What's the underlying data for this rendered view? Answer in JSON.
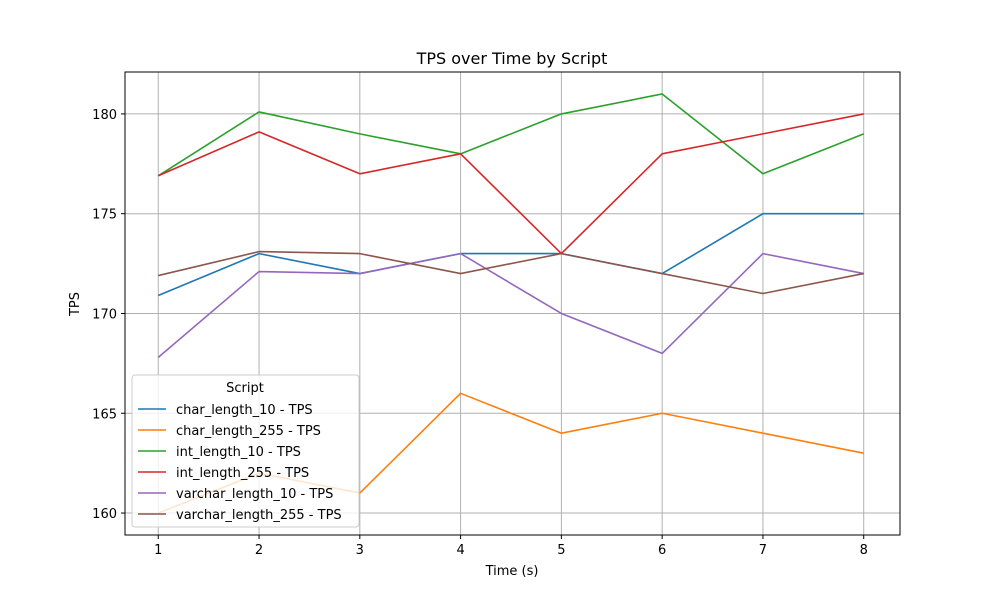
{
  "chart_data": {
    "type": "line",
    "title": "TPS over Time by Script",
    "xlabel": "Time (s)",
    "ylabel": "TPS",
    "x": [
      1,
      2,
      3,
      4,
      5,
      6,
      7,
      8
    ],
    "xlim": [
      0.67,
      8.36
    ],
    "ylim": [
      158.9,
      182.1
    ],
    "xticks": [
      1,
      2,
      3,
      4,
      5,
      6,
      7,
      8
    ],
    "yticks": [
      160,
      165,
      170,
      175,
      180
    ],
    "grid": true,
    "legend": {
      "title": "Script",
      "placement": "lower-left"
    },
    "series": [
      {
        "name": "char_length_10 - TPS",
        "color": "#1f77b4",
        "values": [
          170.9,
          173.0,
          172.0,
          173.0,
          173.0,
          172.0,
          175.0,
          175.0
        ]
      },
      {
        "name": "char_length_255 - TPS",
        "color": "#ff7f0e",
        "values": [
          160.0,
          162.0,
          161.0,
          166.0,
          164.0,
          165.0,
          164.0,
          163.0
        ]
      },
      {
        "name": "int_length_10 - TPS",
        "color": "#2ca02c",
        "values": [
          176.9,
          180.1,
          179.0,
          178.0,
          180.0,
          181.0,
          177.0,
          179.0
        ]
      },
      {
        "name": "int_length_255 - TPS",
        "color": "#d62728",
        "values": [
          176.9,
          179.1,
          177.0,
          178.0,
          173.0,
          178.0,
          179.0,
          180.0
        ]
      },
      {
        "name": "varchar_length_10 - TPS",
        "color": "#9467bd",
        "values": [
          167.8,
          172.1,
          172.0,
          173.0,
          170.0,
          168.0,
          173.0,
          172.0
        ]
      },
      {
        "name": "varchar_length_255 - TPS",
        "color": "#8c564b",
        "values": [
          171.9,
          173.1,
          173.0,
          172.0,
          173.0,
          172.0,
          171.0,
          172.0
        ]
      }
    ]
  }
}
